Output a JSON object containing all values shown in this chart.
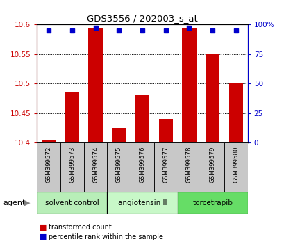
{
  "title": "GDS3556 / 202003_s_at",
  "samples": [
    "GSM399572",
    "GSM399573",
    "GSM399574",
    "GSM399575",
    "GSM399576",
    "GSM399577",
    "GSM399578",
    "GSM399579",
    "GSM399580"
  ],
  "transformed_count": [
    10.405,
    10.485,
    10.595,
    10.425,
    10.48,
    10.44,
    10.595,
    10.55,
    10.5
  ],
  "percentile_rank": [
    95,
    95,
    97,
    95,
    95,
    95,
    97,
    95,
    95
  ],
  "ylim_left": [
    10.4,
    10.6
  ],
  "ylim_right": [
    0,
    100
  ],
  "yticks_left": [
    10.4,
    10.45,
    10.5,
    10.55,
    10.6
  ],
  "yticks_right": [
    0,
    25,
    50,
    75,
    100
  ],
  "groups": [
    {
      "label": "solvent control",
      "indices": [
        0,
        1,
        2
      ],
      "color": "#b8eeb8"
    },
    {
      "label": "angiotensin II",
      "indices": [
        3,
        4,
        5
      ],
      "color": "#c8f8c8"
    },
    {
      "label": "torcetrapib",
      "indices": [
        6,
        7,
        8
      ],
      "color": "#66dd66"
    }
  ],
  "bar_color": "#cc0000",
  "dot_color": "#0000cc",
  "sample_bg_color": "#c8c8c8",
  "bar_width": 0.6,
  "legend_items": [
    {
      "label": "transformed count",
      "color": "#cc0000"
    },
    {
      "label": "percentile rank within the sample",
      "color": "#0000cc"
    }
  ]
}
